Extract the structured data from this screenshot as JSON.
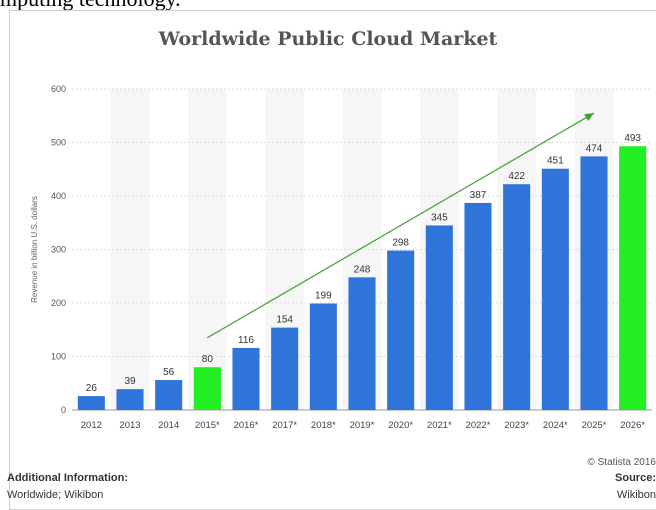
{
  "page": {
    "top_fragment": "mputing technology."
  },
  "chart_data": {
    "type": "bar",
    "title": "Worldwide Public Cloud Market",
    "xlabel": "",
    "ylabel": "Revenue in billion U.S. dollars",
    "ylim": [
      0,
      600
    ],
    "yticks": [
      0,
      100,
      200,
      300,
      400,
      500,
      600
    ],
    "grid": true,
    "categories": [
      "2012",
      "2013",
      "2014",
      "2015*",
      "2016*",
      "2017*",
      "2018*",
      "2019*",
      "2020*",
      "2021*",
      "2022*",
      "2023*",
      "2024*",
      "2025*",
      "2026*"
    ],
    "values": [
      26,
      39,
      56,
      80,
      116,
      154,
      199,
      248,
      298,
      345,
      387,
      422,
      451,
      474,
      493
    ],
    "colors": {
      "default": "#2f74d8",
      "highlighted": "#22ee22",
      "trend_arrow": "#3f9f2f",
      "grid": "#dcdcdc",
      "band": "#f6f6f6"
    },
    "highlighted_categories": [
      "2015*",
      "2026*"
    ],
    "trend_arrow": {
      "from": {
        "x": "2015*",
        "y": 135
      },
      "to": {
        "x": "2025*",
        "y": 555
      }
    }
  },
  "footer": {
    "credit": "© Statista 2016",
    "additional_info_label": "Additional Information:",
    "additional_info_text": "Worldwide; Wikibon",
    "source_label": "Source:",
    "source_text": "Wikibon"
  }
}
